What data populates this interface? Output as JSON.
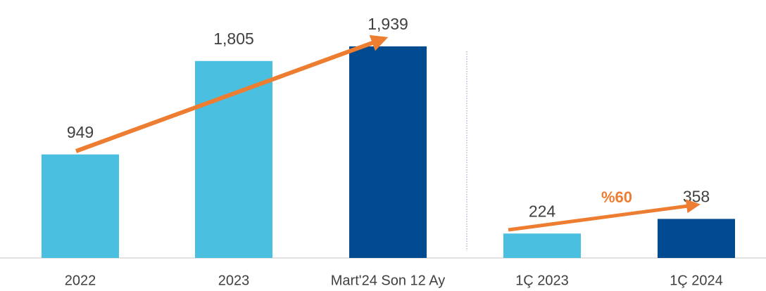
{
  "chart_data": {
    "type": "bar",
    "categories": [
      "2022",
      "2023",
      "Mart'24 Son 12 Ay",
      "1Ç 2023",
      "1Ç 2024"
    ],
    "values": [
      949,
      1805,
      1939,
      224,
      358
    ],
    "value_labels": [
      "949",
      "1,805",
      "1,939",
      "224",
      "358"
    ],
    "colors": [
      "#4bbfe0",
      "#4bbfe0",
      "#004a8f",
      "#4bbfe0",
      "#004a8f"
    ],
    "annotation": "%60"
  }
}
